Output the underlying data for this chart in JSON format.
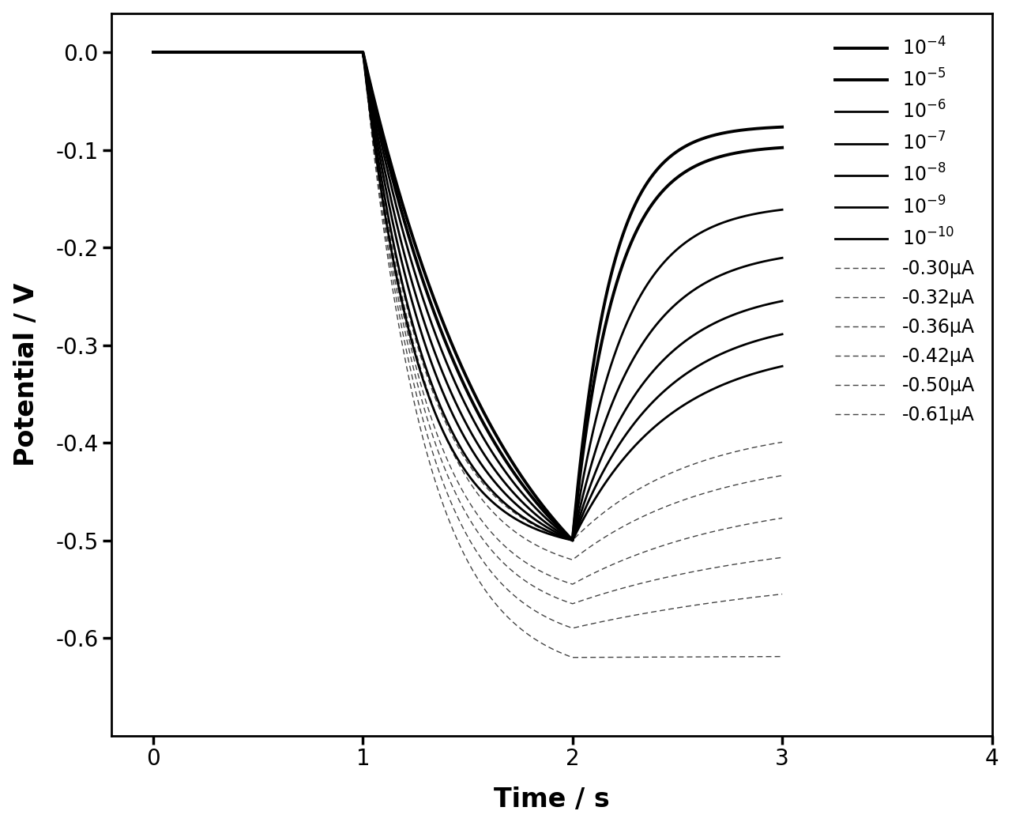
{
  "title": "",
  "xlabel": "Time / s",
  "ylabel": "Potential / V",
  "xlim": [
    -0.2,
    4.0
  ],
  "ylim": [
    -0.7,
    0.04
  ],
  "xticks": [
    0,
    1,
    2,
    3,
    4
  ],
  "yticks": [
    0.0,
    -0.1,
    -0.2,
    -0.3,
    -0.4,
    -0.5,
    -0.6
  ],
  "solid_labels": [
    "$10^{-4}$",
    "$10^{-5}$",
    "$10^{-6}$",
    "$10^{-7}$",
    "$10^{-8}$",
    "$10^{-9}$",
    "$10^{-10}$"
  ],
  "dashed_labels": [
    "-0.30μA",
    "-0.32μA",
    "-0.36μA",
    "-0.42μA",
    "-0.50μA",
    "-0.61μA"
  ],
  "background_color": "#ffffff",
  "line_color": "#000000"
}
